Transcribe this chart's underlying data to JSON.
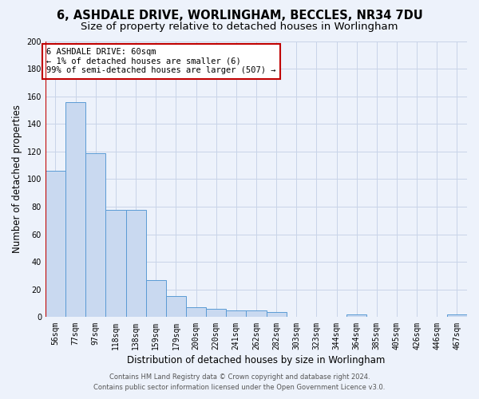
{
  "title1": "6, ASHDALE DRIVE, WORLINGHAM, BECCLES, NR34 7DU",
  "title2": "Size of property relative to detached houses in Worlingham",
  "xlabel": "Distribution of detached houses by size in Worlingham",
  "ylabel": "Number of detached properties",
  "bar_values": [
    106,
    156,
    119,
    78,
    78,
    27,
    15,
    7,
    6,
    5,
    5,
    4,
    0,
    0,
    0,
    2,
    0,
    0,
    0,
    0,
    2
  ],
  "bar_labels": [
    "56sqm",
    "77sqm",
    "97sqm",
    "118sqm",
    "138sqm",
    "159sqm",
    "179sqm",
    "200sqm",
    "220sqm",
    "241sqm",
    "262sqm",
    "282sqm",
    "303sqm",
    "323sqm",
    "344sqm",
    "364sqm",
    "385sqm",
    "405sqm",
    "426sqm",
    "446sqm",
    "467sqm"
  ],
  "bar_color": "#c9d9f0",
  "bar_edge_color": "#5b9bd5",
  "highlight_color": "#c00000",
  "annotation_text": "6 ASHDALE DRIVE: 60sqm\n← 1% of detached houses are smaller (6)\n99% of semi-detached houses are larger (507) →",
  "annotation_box_color": "#ffffff",
  "annotation_box_edge": "#c00000",
  "ylim": [
    0,
    200
  ],
  "yticks": [
    0,
    20,
    40,
    60,
    80,
    100,
    120,
    140,
    160,
    180,
    200
  ],
  "footer1": "Contains HM Land Registry data © Crown copyright and database right 2024.",
  "footer2": "Contains public sector information licensed under the Open Government Licence v3.0.",
  "bg_color": "#edf2fb",
  "plot_bg_color": "#edf2fb",
  "grid_color": "#c8d4e8",
  "title_fontsize": 10.5,
  "subtitle_fontsize": 9.5,
  "tick_fontsize": 7,
  "ylabel_fontsize": 8.5,
  "xlabel_fontsize": 8.5,
  "footer_fontsize": 6
}
